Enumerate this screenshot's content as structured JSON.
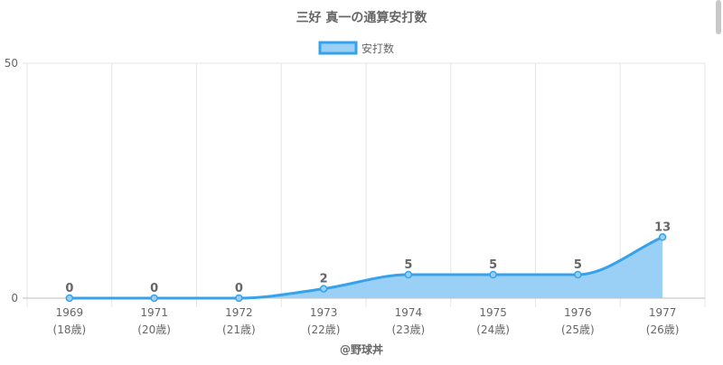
{
  "chart_data": {
    "type": "area",
    "title": "三好 真一の通算安打数",
    "legend": {
      "label": "安打数",
      "position": "top"
    },
    "categories": [
      "1969",
      "1971",
      "1972",
      "1973",
      "1974",
      "1975",
      "1976",
      "1977"
    ],
    "category_sublabels": [
      "(18歳)",
      "(20歳)",
      "(21歳)",
      "(22歳)",
      "(23歳)",
      "(24歳)",
      "(25歳)",
      "(26歳)"
    ],
    "series": [
      {
        "name": "安打数",
        "values": [
          0,
          0,
          0,
          2,
          5,
          5,
          5,
          13
        ]
      }
    ],
    "ylim": [
      0,
      50
    ],
    "yticks": [
      0,
      50
    ],
    "grid": true,
    "colors": {
      "line": "#36a2eb",
      "fill": "#9ad0f5",
      "grid": "#e6e6e6",
      "text": "#666666"
    }
  },
  "footer": {
    "credit": "@野球丼"
  }
}
